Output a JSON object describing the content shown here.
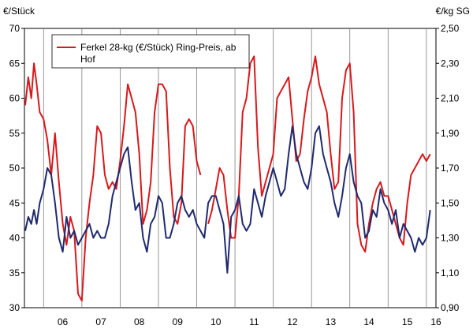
{
  "chart_data": {
    "type": "line",
    "left_axis": {
      "label": "€/Stück",
      "min": 30,
      "max": 70,
      "ticks": [
        "30",
        "35",
        "40",
        "45",
        "50",
        "55",
        "60",
        "65",
        "70"
      ]
    },
    "right_axis": {
      "label": "€/kg SG",
      "min": 0.9,
      "max": 2.5,
      "ticks": [
        "0,90",
        "1,10",
        "1,30",
        "1,50",
        "1,70",
        "1,90",
        "2,10",
        "2,30",
        "2,50"
      ]
    },
    "x_labels": [
      "06",
      "07",
      "08",
      "09",
      "10",
      "11",
      "12",
      "13",
      "14",
      "15",
      "16"
    ],
    "x_range": [
      2005.5,
      2016.25
    ],
    "grid": "vertical year lines",
    "legend": {
      "placement": "top-left",
      "entries": [
        "Ferkel 28-kg (€/Stück) Ring-Preis, ab Hof"
      ]
    },
    "series": [
      {
        "name": "Ferkel 28-kg (€/Stück) Ring-Preis, ab Hof",
        "axis": "left",
        "color": "#d7191c",
        "x": [
          2005.52,
          2005.6,
          2005.68,
          2005.75,
          2005.82,
          2005.9,
          2006.0,
          2006.1,
          2006.2,
          2006.3,
          2006.4,
          2006.5,
          2006.6,
          2006.7,
          2006.8,
          2006.9,
          2007.0,
          2007.1,
          2007.2,
          2007.3,
          2007.4,
          2007.5,
          2007.6,
          2007.7,
          2007.8,
          2007.9,
          2008.0,
          2008.1,
          2008.2,
          2008.3,
          2008.4,
          2008.5,
          2008.6,
          2008.7,
          2008.8,
          2008.9,
          2009.0,
          2009.1,
          2009.2,
          2009.3,
          2009.4,
          2009.5,
          2009.6,
          2009.7,
          2009.8,
          2009.9,
          2010.0,
          2010.1,
          null,
          2010.3,
          2010.4,
          2010.5,
          2010.6,
          2010.7,
          2010.8,
          2010.9,
          2011.0,
          2011.1,
          2011.2,
          2011.3,
          2011.4,
          2011.5,
          2011.6,
          2011.7,
          2011.8,
          2011.9,
          2012.0,
          2012.1,
          2012.2,
          2012.3,
          2012.4,
          2012.5,
          2012.6,
          2012.7,
          2012.8,
          2012.9,
          2013.0,
          2013.1,
          2013.2,
          2013.3,
          2013.4,
          2013.5,
          2013.6,
          2013.7,
          2013.8,
          2013.9,
          2014.0,
          2014.1,
          2014.2,
          2014.3,
          2014.4,
          2014.5,
          2014.6,
          2014.7,
          2014.8,
          2014.9,
          2015.0,
          2015.1,
          2015.2,
          2015.3,
          2015.4,
          2015.5,
          2015.6,
          2015.7,
          2015.8,
          2015.9,
          2016.0,
          2016.1
        ],
        "values": [
          59,
          63,
          60,
          65,
          62,
          58,
          57,
          54,
          49,
          55,
          48,
          42,
          39,
          43,
          41,
          32,
          31,
          40,
          45,
          49,
          56,
          55,
          49,
          47,
          48,
          47,
          51,
          56,
          62,
          60,
          58,
          52,
          42,
          44,
          48,
          58,
          62,
          62,
          61,
          50,
          43,
          42,
          45,
          56,
          57,
          56,
          51,
          49,
          null,
          42,
          44,
          47,
          50,
          49,
          44,
          40,
          40,
          46,
          58,
          60,
          65,
          66,
          53,
          46,
          48,
          50,
          52,
          60,
          61,
          62,
          63,
          57,
          51,
          52,
          57,
          61,
          63,
          66,
          62,
          60,
          58,
          52,
          47,
          48,
          60,
          64,
          65,
          58,
          42,
          39,
          38,
          42,
          45,
          47,
          48,
          46,
          46,
          44,
          42,
          40,
          39,
          45,
          49,
          50,
          51,
          52,
          51,
          52
        ]
      },
      {
        "name": "",
        "axis": "left",
        "color": "#1f2a6e",
        "x": [
          2005.52,
          2005.6,
          2005.68,
          2005.75,
          2005.82,
          2005.9,
          2006.0,
          2006.1,
          2006.2,
          2006.3,
          2006.4,
          2006.5,
          2006.6,
          2006.7,
          2006.8,
          2006.9,
          2007.0,
          2007.1,
          2007.2,
          2007.3,
          2007.4,
          2007.5,
          2007.6,
          2007.7,
          2007.8,
          2007.9,
          2008.0,
          2008.1,
          2008.2,
          2008.3,
          2008.4,
          2008.5,
          2008.6,
          2008.7,
          2008.8,
          2008.9,
          2009.0,
          2009.1,
          2009.2,
          2009.3,
          2009.4,
          2009.5,
          2009.6,
          2009.7,
          2009.8,
          2009.9,
          2010.0,
          2010.1,
          2010.2,
          2010.3,
          2010.4,
          2010.5,
          2010.6,
          2010.7,
          2010.8,
          2010.9,
          2011.0,
          2011.1,
          2011.2,
          2011.3,
          2011.4,
          2011.5,
          2011.6,
          2011.7,
          2011.8,
          2011.9,
          2012.0,
          2012.1,
          2012.2,
          2012.3,
          2012.4,
          2012.5,
          2012.6,
          2012.7,
          2012.8,
          2012.9,
          2013.0,
          2013.1,
          2013.2,
          2013.3,
          2013.4,
          2013.5,
          2013.6,
          2013.7,
          2013.8,
          2013.9,
          2014.0,
          2014.1,
          2014.2,
          2014.3,
          2014.4,
          2014.5,
          2014.6,
          2014.7,
          2014.8,
          2014.9,
          2015.0,
          2015.1,
          2015.2,
          2015.3,
          2015.4,
          2015.5,
          2015.6,
          2015.7,
          2015.8,
          2015.9,
          2016.0,
          2016.1
        ],
        "values": [
          41,
          43,
          42,
          44,
          42,
          45,
          47,
          50,
          49,
          45,
          40,
          38,
          43,
          40,
          41,
          39,
          40,
          41,
          42,
          40,
          41,
          40,
          40,
          42,
          46,
          48,
          50,
          52,
          53,
          48,
          44,
          45,
          40,
          38,
          42,
          43,
          46,
          45,
          40,
          40,
          42,
          45,
          46,
          44,
          43,
          44,
          42,
          41,
          40,
          45,
          46,
          46,
          44,
          42,
          35,
          43,
          44,
          46,
          42,
          41,
          42,
          47,
          45,
          43,
          46,
          48,
          50,
          48,
          46,
          47,
          52,
          56,
          52,
          50,
          48,
          47,
          50,
          55,
          56,
          52,
          50,
          48,
          45,
          43,
          46,
          50,
          52,
          48,
          46,
          45,
          40,
          41,
          44,
          43,
          47,
          45,
          44,
          42,
          44,
          40,
          42,
          41,
          40,
          38,
          40,
          39,
          40,
          44
        ]
      }
    ]
  }
}
